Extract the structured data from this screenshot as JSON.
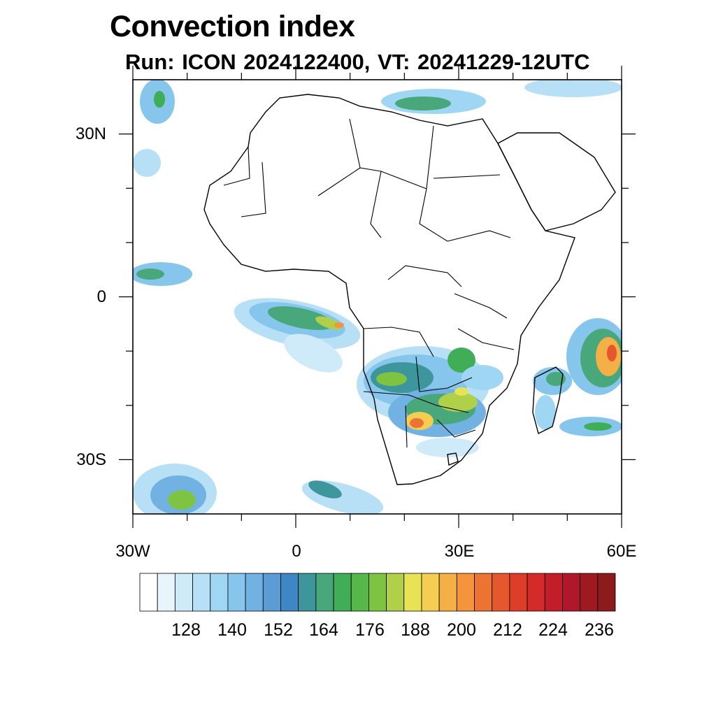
{
  "title": "Convection index",
  "subtitle": "Run: ICON 2024122400,  VT: 20241229-12UTC",
  "map": {
    "lon_range": [
      -30,
      60
    ],
    "lat_range": [
      -40,
      40
    ],
    "y_ticks": [
      {
        "label": "30N",
        "lat": 30
      },
      {
        "label": "0",
        "lat": 0
      },
      {
        "label": "30S",
        "lat": -30
      }
    ],
    "x_ticks": [
      {
        "label": "30W",
        "lon": -30
      },
      {
        "label": "0",
        "lon": 0
      },
      {
        "label": "30E",
        "lon": 30
      },
      {
        "label": "60E",
        "lon": 60
      }
    ]
  },
  "colorbar": {
    "colors": [
      "#ffffff",
      "#e8f5fc",
      "#cfeaf8",
      "#b7e0f6",
      "#9fd6f4",
      "#86c6ec",
      "#72b2e2",
      "#5b9cd5",
      "#3f86c4",
      "#3c969b",
      "#48a77b",
      "#3fae57",
      "#55b848",
      "#7ec442",
      "#b0d04a",
      "#e8e255",
      "#f5cd52",
      "#f4b047",
      "#f4943c",
      "#ec7332",
      "#e5572d",
      "#dd3e2a",
      "#d42a2a",
      "#c21e2a",
      "#b0172a",
      "#9e1a20",
      "#8c1c1c"
    ],
    "labels": [
      "128",
      "140",
      "152",
      "164",
      "176",
      "188",
      "200",
      "212",
      "224",
      "236"
    ]
  }
}
